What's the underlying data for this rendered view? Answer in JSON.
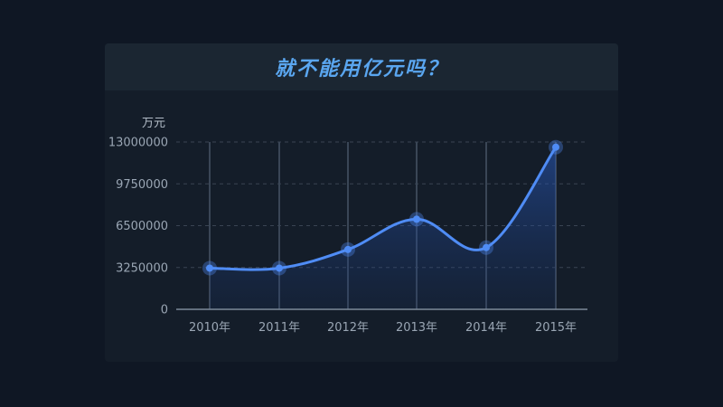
{
  "card": {
    "title": "就不能用亿元吗？"
  },
  "chart_data": {
    "type": "line",
    "title": "就不能用亿元吗？",
    "ylabel": "万元",
    "xlabel": "",
    "categories": [
      "2010年",
      "2011年",
      "2012年",
      "2013年",
      "2014年",
      "2015年"
    ],
    "series": [
      {
        "values": [
          3200000,
          3200000,
          4650000,
          7000000,
          4800000,
          12600000
        ]
      }
    ],
    "ylim": [
      0,
      13000000
    ],
    "yticks": [
      0,
      3250000,
      6500000,
      9750000,
      13000000
    ],
    "grid": true,
    "colors": {
      "line": "#4f8cf5",
      "marker": "#4f8cf5",
      "grid": "#3a4452",
      "axis": "#7d8a99",
      "vline": "#3a4656"
    }
  }
}
